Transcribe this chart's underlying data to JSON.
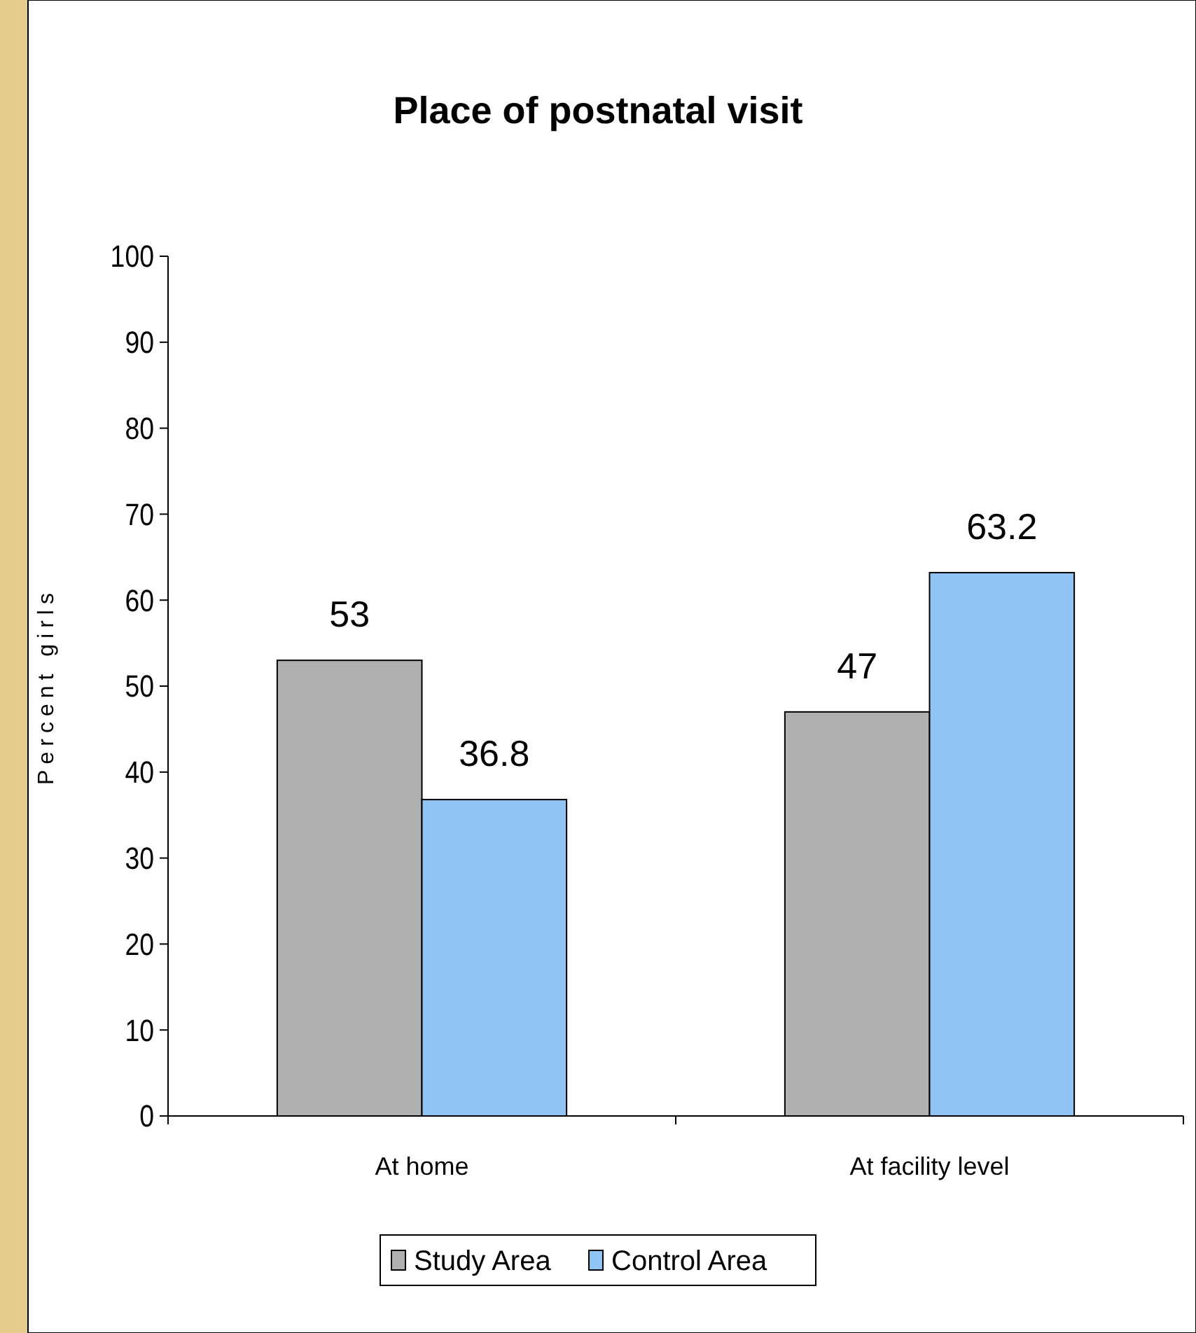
{
  "chart_data": {
    "type": "bar",
    "title": "Place of postnatal visit",
    "ylabel": "Percent girls",
    "categories": [
      "At home",
      "At facility level"
    ],
    "series": [
      {
        "name": "Study Area",
        "color": "#b0b0b0",
        "values": [
          53,
          47
        ]
      },
      {
        "name": "Control Area",
        "color": "#8fc4f4",
        "values": [
          36.8,
          63.2
        ]
      }
    ],
    "ylim": [
      0,
      100
    ],
    "yticks": [
      0,
      10,
      20,
      30,
      40,
      50,
      60,
      70,
      80,
      90,
      100
    ],
    "grid": false,
    "legend": "bottom",
    "data_labels": true
  }
}
